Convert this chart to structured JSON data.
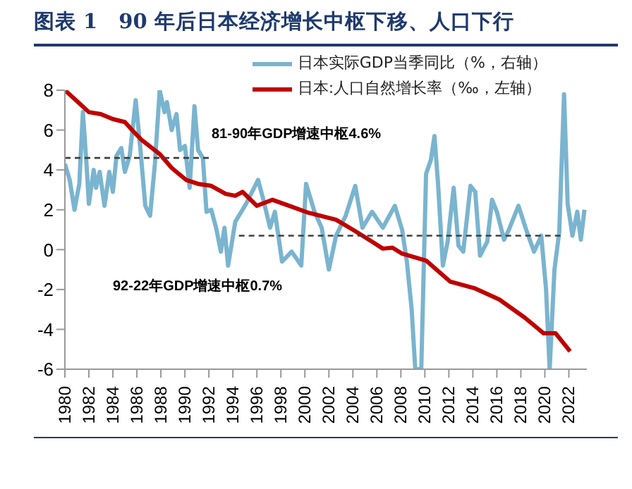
{
  "chart_data": {
    "type": "line",
    "title": "图表 1　90 年后日本经济增长中枢下移、人口下行",
    "xlim": [
      1980,
      2023.5
    ],
    "xticks": [
      1980,
      1982,
      1984,
      1986,
      1988,
      1990,
      1992,
      1994,
      1996,
      1998,
      2000,
      2002,
      2004,
      2006,
      2008,
      2010,
      2012,
      2014,
      2016,
      2018,
      2020,
      2022
    ],
    "ylim": [
      -6,
      8
    ],
    "yticks": [
      -6,
      -4,
      -2,
      0,
      2,
      4,
      6,
      8
    ],
    "grid": false,
    "legend": "top right",
    "marker": "none",
    "series": [
      {
        "name": "日本实际GDP当季同比（%，右轴）",
        "color": "#7ab4cf",
        "line_style": "solid",
        "x": [
          1980,
          1980.4,
          1980.8,
          1981.2,
          1981.5,
          1981.8,
          1982,
          1982.4,
          1982.6,
          1982.9,
          1983.3,
          1983.7,
          1984,
          1984.3,
          1984.7,
          1985,
          1985.4,
          1985.9,
          1986.3,
          1986.7,
          1987.1,
          1987.5,
          1987.9,
          1988.3,
          1988.5,
          1988.9,
          1989.3,
          1989.6,
          1990,
          1990.4,
          1990.8,
          1991.1,
          1991.5,
          1991.8,
          1992.2,
          1992.6,
          1993,
          1993.3,
          1993.6,
          1994.2,
          1995.1,
          1996.1,
          1996.5,
          1997.1,
          1997.5,
          1998.1,
          1998.9,
          1999.7,
          2000.1,
          2000.8,
          2001.4,
          2002,
          2002.6,
          2003.4,
          2004.2,
          2004.8,
          2005.6,
          2006.5,
          2007.5,
          2008.1,
          2008.5,
          2008.9,
          2009.2,
          2009.7,
          2010.1,
          2010.5,
          2010.8,
          2011.1,
          2011.5,
          2011.9,
          2012.4,
          2012.8,
          2013.2,
          2013.8,
          2014.2,
          2014.6,
          2015.2,
          2015.6,
          2016,
          2016.6,
          2017,
          2017.8,
          2018.5,
          2019.1,
          2019.7,
          2020.1,
          2020.4,
          2020.8,
          2021.2,
          2021.6,
          2021.9,
          2022.3,
          2022.7,
          2023,
          2023.3
        ],
        "values": [
          4.3,
          3.5,
          2.0,
          3.3,
          6.9,
          4.3,
          2.3,
          4.0,
          3.1,
          3.9,
          2.2,
          3.9,
          2.9,
          4.7,
          5.1,
          3.9,
          4.7,
          7.5,
          5.0,
          2.2,
          1.7,
          4.3,
          8.0,
          6.9,
          7.4,
          6.0,
          6.8,
          5.0,
          5.2,
          3.1,
          7.2,
          5.0,
          4.6,
          1.9,
          2.0,
          1.1,
          -0.1,
          1.1,
          -0.8,
          1.4,
          2.3,
          3.5,
          2.6,
          1.1,
          1.9,
          -0.6,
          -0.1,
          -0.8,
          3.3,
          1.9,
          1.1,
          -1.0,
          0.7,
          1.7,
          3.2,
          1.1,
          1.9,
          1.1,
          2.2,
          1.0,
          -0.6,
          -3.0,
          -6,
          -6,
          3.8,
          4.5,
          5.7,
          3.3,
          -0.8,
          0.4,
          3.1,
          0.2,
          -0.1,
          3.2,
          2.9,
          -0.3,
          0.4,
          2.5,
          1.9,
          0.5,
          1.0,
          2.2,
          0.9,
          -0.1,
          0.7,
          -2.0,
          -6,
          -1.0,
          0.9,
          7.8,
          2.3,
          0.7,
          1.9,
          0.5,
          2.0
        ]
      },
      {
        "name": "日本:人口自然增长率（‰，左轴）",
        "color": "#c00000",
        "line_style": "solid",
        "x": [
          1980,
          1981.1,
          1982,
          1983,
          1984,
          1985,
          1985.6,
          1986.4,
          1987.9,
          1988.9,
          1990.1,
          1991.1,
          1992.2,
          1993.4,
          1994.2,
          1994.8,
          1996,
          1997.3,
          1998.7,
          2000.3,
          2002.6,
          2004,
          2005.6,
          2006.5,
          2007.3,
          2008.1,
          2010.1,
          2012.1,
          2014.2,
          2016.2,
          2018.3,
          2019.9,
          2020.9,
          2022.1
        ],
        "values": [
          8.0,
          7.4,
          6.9,
          6.8,
          6.55,
          6.4,
          6.0,
          5.5,
          4.8,
          4.1,
          3.5,
          3.3,
          3.2,
          2.8,
          2.7,
          2.9,
          2.2,
          2.5,
          2.2,
          1.85,
          1.5,
          1.0,
          0.4,
          0.05,
          0.1,
          -0.2,
          -0.55,
          -1.6,
          -1.95,
          -2.5,
          -3.4,
          -4.2,
          -4.2,
          -5.1
        ]
      },
      {
        "color": "#404040",
        "line_style": "dashed",
        "x": [
          1980,
          1992.1
        ],
        "values": [
          4.6,
          4.6
        ]
      },
      {
        "color": "#404040",
        "line_style": "dashed",
        "x": [
          1994.5,
          2021.5
        ],
        "values": [
          0.7,
          0.7
        ]
      }
    ],
    "annotations": [
      "81-90年GDP增速中枢4.6%",
      "92-22年GDP增速中枢0.7%"
    ]
  }
}
